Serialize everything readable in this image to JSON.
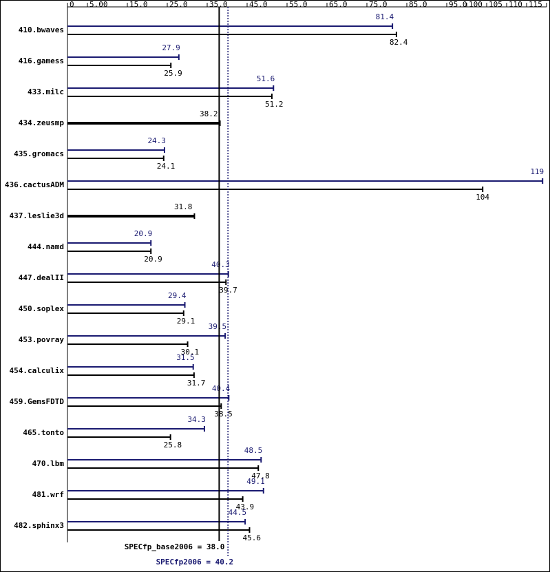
{
  "chart_data": {
    "type": "bar",
    "categories": [
      "410.bwaves",
      "416.gamess",
      "433.milc",
      "434.zeusmp",
      "435.gromacs",
      "436.cactusADM",
      "437.leslie3d",
      "444.namd",
      "447.dealII",
      "450.soplex",
      "453.povray",
      "454.calculix",
      "459.GemsFDTD",
      "465.tonto",
      "470.lbm",
      "481.wrf",
      "482.sphinx3"
    ],
    "series": [
      {
        "name": "peak",
        "color": "#191970",
        "values": [
          81.4,
          27.9,
          51.6,
          null,
          24.3,
          119,
          null,
          20.9,
          40.3,
          29.4,
          39.5,
          31.5,
          40.4,
          34.3,
          48.5,
          49.1,
          44.5
        ]
      },
      {
        "name": "base",
        "color": "#000000",
        "values": [
          82.4,
          25.9,
          51.2,
          38.2,
          24.1,
          104,
          31.8,
          20.9,
          39.7,
          29.1,
          30.1,
          31.7,
          38.5,
          25.8,
          47.8,
          43.9,
          45.6
        ]
      }
    ],
    "xlim": [
      0,
      120
    ],
    "xticks": [
      0,
      {
        "value": 5,
        "label": "5.00"
      },
      {
        "value": 15,
        "label": "15.0"
      },
      {
        "value": 25,
        "label": "25.0"
      },
      {
        "value": 35,
        "label": "35.0"
      },
      {
        "value": 45,
        "label": "45.0"
      },
      {
        "value": 55,
        "label": "55.0"
      },
      {
        "value": 65,
        "label": "65.0"
      },
      {
        "value": 75,
        "label": "75.0"
      },
      {
        "value": 85,
        "label": "85.0"
      },
      {
        "value": 95,
        "label": "95.0"
      },
      100,
      105,
      110,
      115,
      120
    ],
    "reference_lines": [
      {
        "label": "SPECfp_base2006 = 38.0",
        "value": 38.0,
        "color": "#000000"
      },
      {
        "label": "SPECfp2006 = 40.2",
        "value": 40.2,
        "color": "#191970"
      }
    ]
  }
}
